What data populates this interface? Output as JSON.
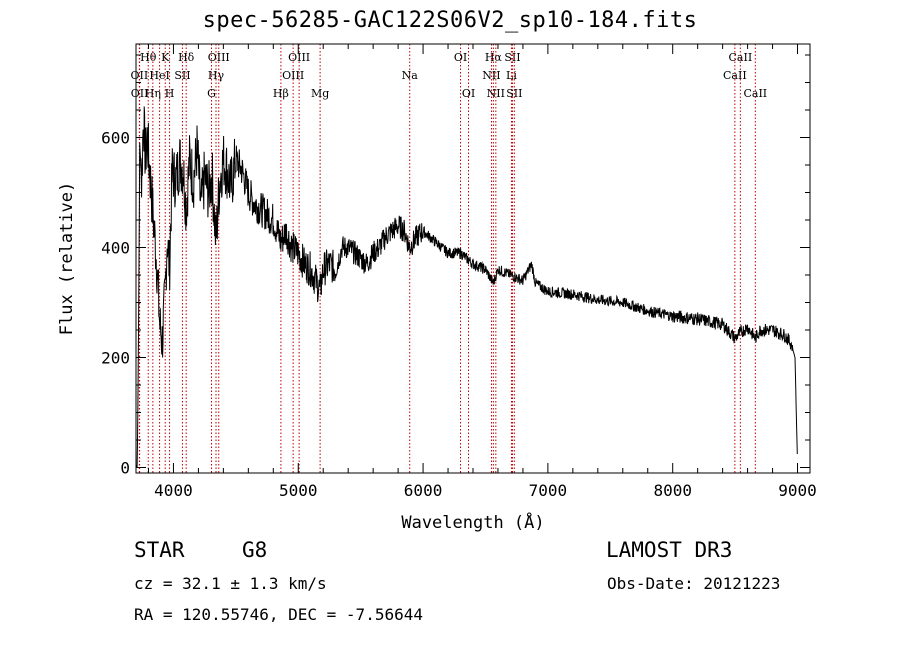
{
  "chart_data": {
    "type": "line",
    "title": "spec-56285-GAC122S06V2_sp10-184.fits",
    "xlabel": "Wavelength (Å)",
    "ylabel": "Flux (relative)",
    "xlim": [
      3700,
      9100
    ],
    "ylim": [
      -10,
      770
    ],
    "x_ticks": [
      4000,
      5000,
      6000,
      7000,
      8000,
      9000
    ],
    "x_tick_labels": [
      "4000",
      "5000",
      "6000",
      "7000",
      "8000",
      "9000"
    ],
    "y_ticks": [
      0,
      200,
      400,
      600
    ],
    "y_tick_labels": [
      "0",
      "200",
      "400",
      "600"
    ],
    "series": [
      {
        "name": "flux",
        "x": [
          3700,
          3710,
          3720,
          3730,
          3745,
          3760,
          3775,
          3790,
          3810,
          3830,
          3850,
          3870,
          3890,
          3910,
          3933,
          3950,
          3968,
          3990,
          4020,
          4050,
          4080,
          4101,
          4130,
          4160,
          4190,
          4220,
          4250,
          4280,
          4310,
          4340,
          4370,
          4400,
          4430,
          4460,
          4500,
          4550,
          4600,
          4650,
          4700,
          4750,
          4800,
          4861,
          4900,
          4950,
          5000,
          5050,
          5100,
          5150,
          5175,
          5200,
          5250,
          5300,
          5350,
          5400,
          5450,
          5500,
          5550,
          5600,
          5650,
          5700,
          5750,
          5800,
          5850,
          5893,
          5950,
          6000,
          6100,
          6200,
          6300,
          6400,
          6500,
          6563,
          6600,
          6700,
          6800,
          6870,
          6900,
          7000,
          7200,
          7400,
          7600,
          7800,
          8000,
          8200,
          8400,
          8498,
          8542,
          8600,
          8662,
          8700,
          8800,
          8900,
          8950,
          8980,
          9000
        ],
        "values": [
          5,
          0,
          230,
          590,
          520,
          640,
          560,
          600,
          540,
          480,
          420,
          360,
          260,
          230,
          310,
          420,
          360,
          540,
          520,
          560,
          540,
          470,
          560,
          520,
          580,
          470,
          530,
          500,
          530,
          410,
          520,
          560,
          540,
          510,
          560,
          540,
          500,
          480,
          470,
          460,
          450,
          410,
          430,
          400,
          390,
          370,
          360,
          335,
          320,
          360,
          370,
          360,
          400,
          400,
          390,
          380,
          370,
          390,
          400,
          420,
          430,
          440,
          430,
          400,
          420,
          430,
          410,
          390,
          390,
          370,
          360,
          335,
          360,
          350,
          340,
          370,
          335,
          320,
          315,
          305,
          300,
          285,
          275,
          270,
          260,
          235,
          245,
          255,
          235,
          250,
          250,
          240,
          225,
          200,
          5
        ]
      }
    ],
    "lines": [
      {
        "label": "Hθ",
        "wave": 3798
      },
      {
        "label": "OII",
        "wave": 3727
      },
      {
        "label": "OII",
        "wave": 3729
      },
      {
        "label": "HeI",
        "wave": 3889
      },
      {
        "label": "Hη",
        "wave": 3835
      },
      {
        "label": "K",
        "wave": 3934
      },
      {
        "label": "H",
        "wave": 3969
      },
      {
        "label": "SII",
        "wave": 4072
      },
      {
        "label": "Hδ",
        "wave": 4102
      },
      {
        "label": "OIII",
        "wave": 4363
      },
      {
        "label": "Hγ",
        "wave": 4341
      },
      {
        "label": "G",
        "wave": 4305
      },
      {
        "label": "Hβ",
        "wave": 4861
      },
      {
        "label": "OIII",
        "wave": 5007
      },
      {
        "label": "OIII",
        "wave": 4959
      },
      {
        "label": "Mg",
        "wave": 5175
      },
      {
        "label": "Na",
        "wave": 5893
      },
      {
        "label": "OI",
        "wave": 6300
      },
      {
        "label": "OI",
        "wave": 6364
      },
      {
        "label": "Hα",
        "wave": 6563
      },
      {
        "label": "NII",
        "wave": 6548
      },
      {
        "label": "NII",
        "wave": 6583
      },
      {
        "label": "SII",
        "wave": 6716
      },
      {
        "label": "Li",
        "wave": 6708
      },
      {
        "label": "SII",
        "wave": 6731
      },
      {
        "label": "CaII",
        "wave": 8542
      },
      {
        "label": "CaII",
        "wave": 8498
      },
      {
        "label": "CaII",
        "wave": 8662
      }
    ]
  },
  "info": {
    "object_class": "STAR",
    "subclass": "G8",
    "survey": "LAMOST DR3",
    "cz": "cz = 32.1 ± 1.3 km/s",
    "obs_date": "Obs-Date: 20121223",
    "radec": "RA = 120.55746, DEC =  -7.56644"
  }
}
